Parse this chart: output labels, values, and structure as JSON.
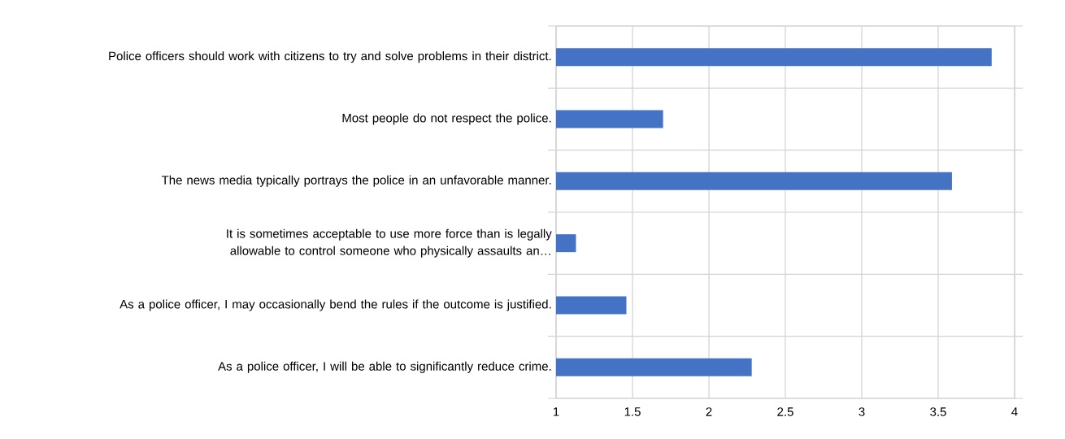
{
  "chart_data": {
    "type": "bar",
    "orientation": "horizontal",
    "categories": [
      "Police officers should work with citizens to try and solve problems in their district.",
      "Most people do not respect the police.",
      "The news media typically portrays the police in an unfavorable manner.",
      "It is sometimes acceptable to use more force than is legally allowable to control someone who physically assaults an…",
      "As a police officer, I may occasionally bend the rules if the outcome is justified.",
      "As a police officer, I will be able to significantly reduce crime."
    ],
    "values": [
      3.85,
      1.7,
      3.59,
      1.13,
      1.46,
      2.28
    ],
    "color": "#4472c4",
    "xlim": [
      1,
      4
    ],
    "xticks": [
      1,
      1.5,
      2,
      2.5,
      3,
      3.5,
      4
    ],
    "grid": true
  }
}
